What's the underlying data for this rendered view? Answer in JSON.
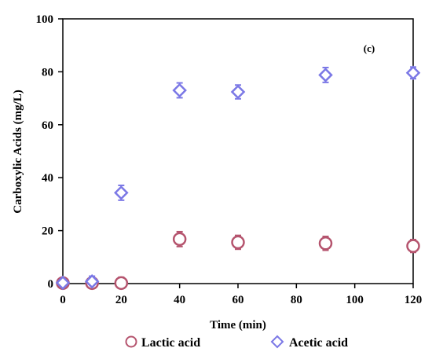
{
  "chart_data": {
    "type": "scatter",
    "title": "",
    "panel_label": "(c)",
    "xlabel": "Time (min)",
    "ylabel": "Carboxylic Acids (mg/L)",
    "xlim": [
      0,
      120
    ],
    "ylim": [
      0,
      100
    ],
    "x_ticks": [
      0,
      20,
      40,
      60,
      80,
      100,
      120
    ],
    "y_ticks": [
      0,
      20,
      40,
      60,
      80,
      100
    ],
    "grid": false,
    "legend_position": "bottom",
    "series": [
      {
        "name": "Lactic acid",
        "marker": "circle",
        "color": "#b5546e",
        "x": [
          0,
          10,
          20,
          40,
          60,
          90,
          120
        ],
        "y": [
          0.2,
          0.2,
          0.2,
          16.8,
          15.6,
          15.2,
          14.2
        ],
        "error": [
          1.8,
          1.8,
          2.2,
          2.8,
          2.6,
          2.6,
          2.4
        ]
      },
      {
        "name": "Acetic acid",
        "marker": "diamond",
        "color": "#7b78e6",
        "x": [
          0,
          10,
          20,
          40,
          60,
          90,
          120
        ],
        "y": [
          0.3,
          0.8,
          34.3,
          73.0,
          72.4,
          78.8,
          79.6
        ],
        "error": [
          1.2,
          2.0,
          2.8,
          2.8,
          2.6,
          2.8,
          2.2
        ]
      }
    ]
  }
}
